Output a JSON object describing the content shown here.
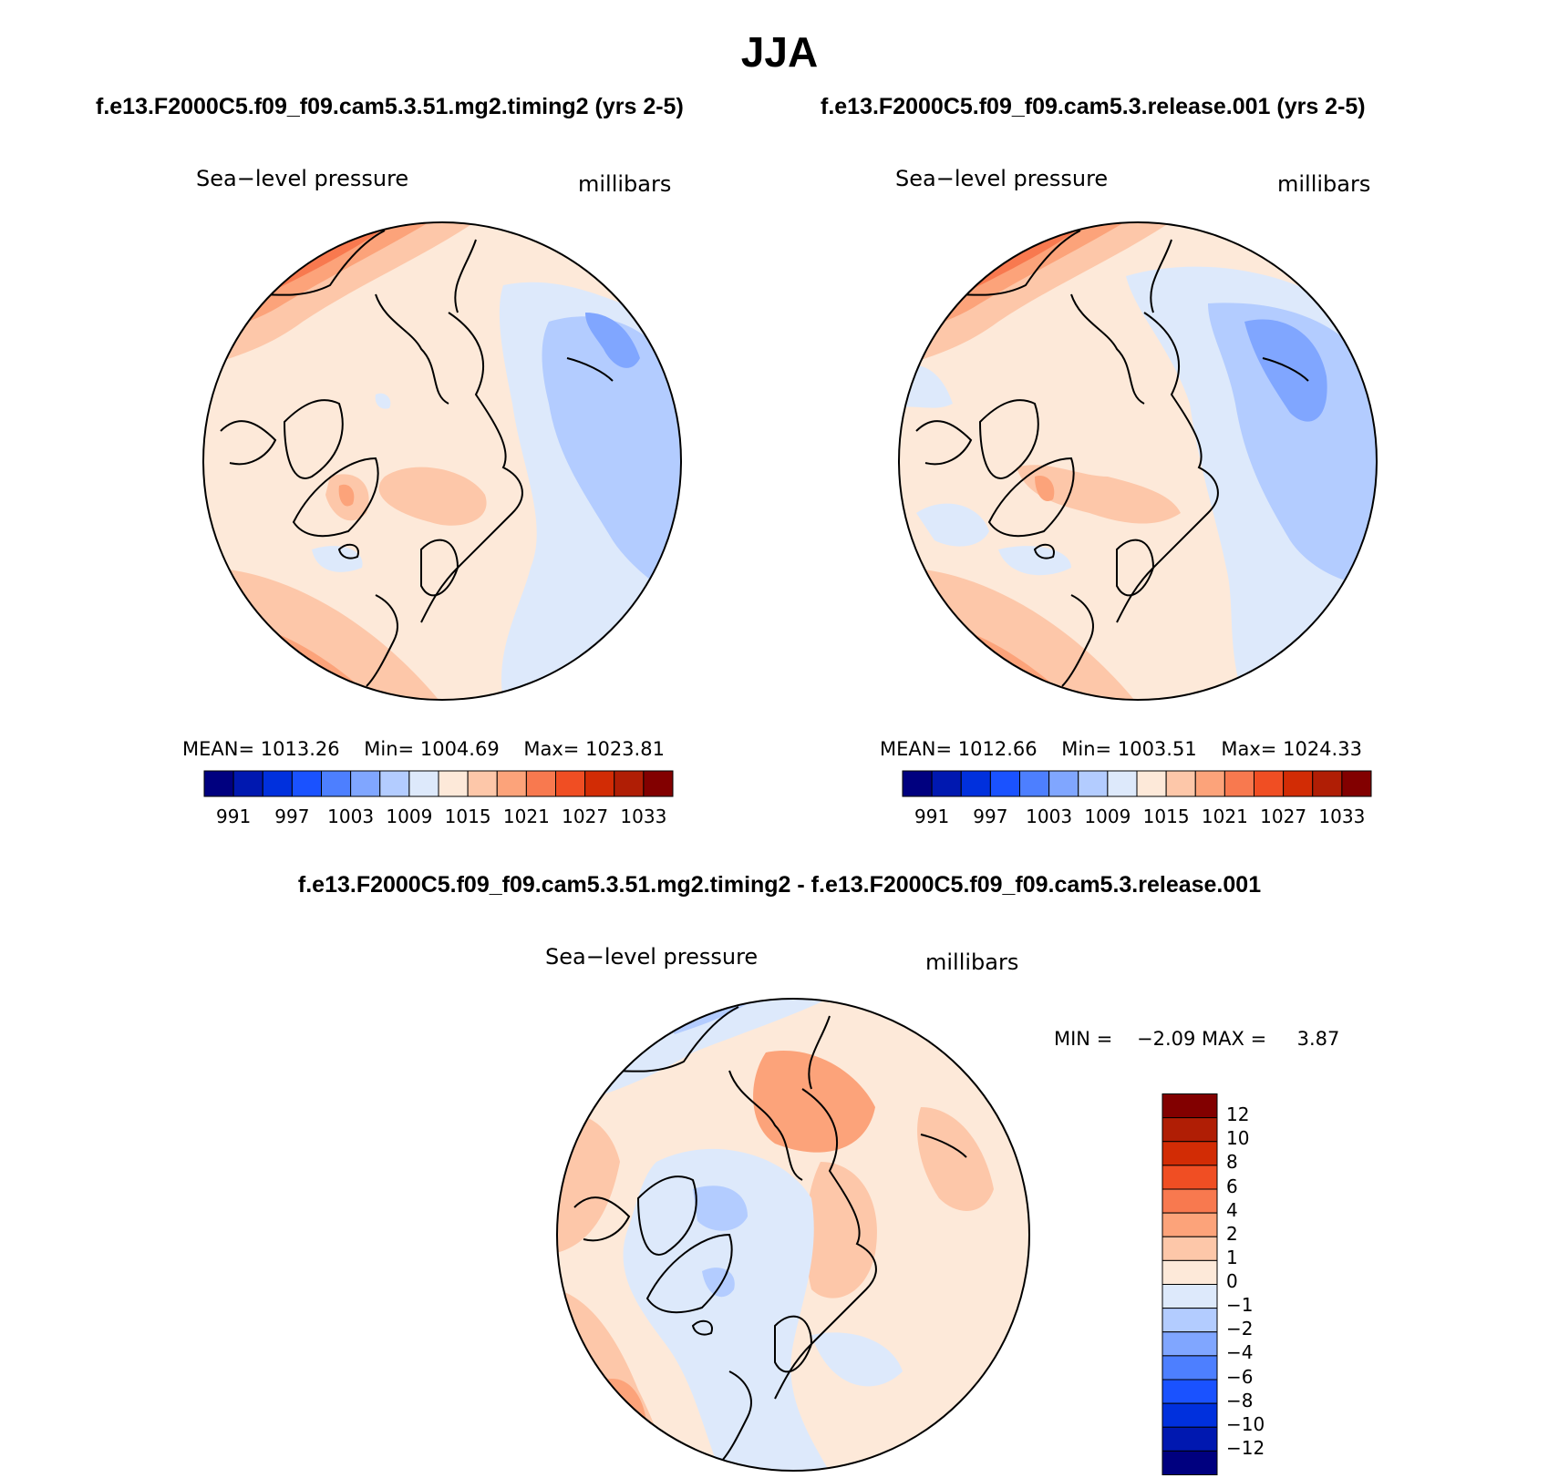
{
  "title": "JJA",
  "panels": [
    {
      "case": "f.e13.F2000C5.f09_f09.cam5.3.51.mg2.timing2 (yrs 2-5)",
      "variable": "Sea−level pressure",
      "units": "millibars",
      "mean_label": "MEAN=",
      "mean": "1013.26",
      "min_label": "Min=",
      "min": "1004.69",
      "max_label": "Max=",
      "max": "1023.81"
    },
    {
      "case": "f.e13.F2000C5.f09_f09.cam5.3.release.001 (yrs 2-5)",
      "variable": "Sea−level pressure",
      "units": "millibars",
      "mean_label": "MEAN=",
      "mean": "1012.66",
      "min_label": "Min=",
      "min": "1003.51",
      "max_label": "Max=",
      "max": "1024.33"
    }
  ],
  "diff_panel": {
    "case": "f.e13.F2000C5.f09_f09.cam5.3.51.mg2.timing2 - f.e13.F2000C5.f09_f09.cam5.3.release.001",
    "variable": "Sea−level pressure",
    "units": "millibars",
    "min_label": "MIN =",
    "min": "−2.09",
    "max_label": "MAX =",
    "max": "3.87"
  },
  "colorbar_horizontal": {
    "labels": [
      "991",
      "997",
      "1003",
      "1009",
      "1015",
      "1021",
      "1027",
      "1033"
    ],
    "colors": [
      "#00007f",
      "#0018b0",
      "#0030dd",
      "#1a52ff",
      "#4d7fff",
      "#80a6ff",
      "#b3ccff",
      "#dde9fb",
      "#fde9d9",
      "#fdc7a9",
      "#fca37a",
      "#f8794f",
      "#f04e23",
      "#d22c05",
      "#b01e05",
      "#820000"
    ]
  },
  "colorbar_vertical": {
    "labels": [
      "12",
      "10",
      "8",
      "6",
      "4",
      "2",
      "1",
      "0",
      "−1",
      "−2",
      "−4",
      "−6",
      "−8",
      "−10",
      "−12"
    ],
    "colors": [
      "#820000",
      "#b01e05",
      "#d22c05",
      "#f04e23",
      "#f8794f",
      "#fca37a",
      "#fdc7a9",
      "#fde9d9",
      "#dde9fb",
      "#b3ccff",
      "#80a6ff",
      "#4d7fff",
      "#1a52ff",
      "#0030dd",
      "#0018b0",
      "#00007f"
    ]
  }
}
